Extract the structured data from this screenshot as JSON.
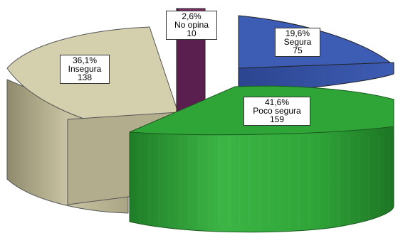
{
  "chart_data": {
    "type": "pie",
    "style": "3d-exploded",
    "slices": [
      {
        "name": "Poco segura",
        "percent_label": "41,6%",
        "count": 159,
        "color": "#2e9e36"
      },
      {
        "name": "Insegura",
        "percent_label": "36,1%",
        "count": 138,
        "color": "#c8c3a0"
      },
      {
        "name": "No opina",
        "percent_label": "2,6%",
        "count": 10,
        "color": "#5a1f4e"
      },
      {
        "name": "Segura",
        "percent_label": "19,6%",
        "count": 75,
        "color": "#3a56a8"
      }
    ]
  }
}
